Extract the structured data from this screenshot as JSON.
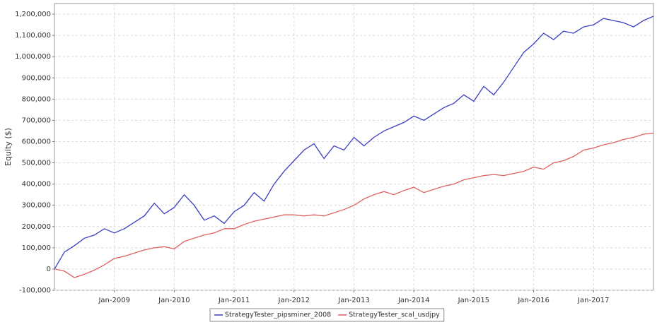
{
  "chart_data": {
    "type": "line",
    "y_label": "Equity ($)",
    "x": [
      "2008-01",
      "2008-03",
      "2008-05",
      "2008-07",
      "2008-09",
      "2008-11",
      "2009-01",
      "2009-03",
      "2009-05",
      "2009-07",
      "2009-09",
      "2009-11",
      "2010-01",
      "2010-03",
      "2010-05",
      "2010-07",
      "2010-09",
      "2010-11",
      "2011-01",
      "2011-03",
      "2011-05",
      "2011-07",
      "2011-09",
      "2011-11",
      "2012-01",
      "2012-03",
      "2012-05",
      "2012-07",
      "2012-09",
      "2012-11",
      "2013-01",
      "2013-03",
      "2013-05",
      "2013-07",
      "2013-09",
      "2013-11",
      "2014-01",
      "2014-03",
      "2014-05",
      "2014-07",
      "2014-09",
      "2014-11",
      "2015-01",
      "2015-03",
      "2015-05",
      "2015-07",
      "2015-09",
      "2015-11",
      "2016-01",
      "2016-03",
      "2016-05",
      "2016-07",
      "2016-09",
      "2016-11",
      "2017-01",
      "2017-03",
      "2017-05",
      "2017-07",
      "2017-09",
      "2017-11",
      "2018-01"
    ],
    "series": [
      {
        "name": "StrategyTester_pipsminer_2008",
        "color": "#3a3fc0",
        "values": [
          0,
          80000,
          110000,
          145000,
          160000,
          190000,
          170000,
          190000,
          220000,
          250000,
          310000,
          260000,
          290000,
          350000,
          300000,
          230000,
          250000,
          215000,
          270000,
          300000,
          360000,
          320000,
          400000,
          460000,
          510000,
          560000,
          590000,
          520000,
          580000,
          560000,
          620000,
          580000,
          620000,
          650000,
          670000,
          690000,
          720000,
          700000,
          730000,
          760000,
          780000,
          820000,
          790000,
          860000,
          820000,
          880000,
          950000,
          1020000,
          1060000,
          1110000,
          1080000,
          1120000,
          1110000,
          1140000,
          1150000,
          1180000,
          1170000,
          1160000,
          1140000,
          1170000,
          1190000
        ]
      },
      {
        "name": "StrategyTester_scal_usdjpy",
        "color": "#e06060",
        "values": [
          0,
          -10000,
          -40000,
          -25000,
          -5000,
          20000,
          50000,
          60000,
          75000,
          90000,
          100000,
          105000,
          95000,
          130000,
          145000,
          160000,
          170000,
          190000,
          190000,
          210000,
          225000,
          235000,
          245000,
          255000,
          255000,
          250000,
          255000,
          250000,
          265000,
          280000,
          300000,
          330000,
          350000,
          365000,
          350000,
          370000,
          385000,
          360000,
          375000,
          390000,
          400000,
          420000,
          430000,
          440000,
          445000,
          440000,
          450000,
          460000,
          480000,
          470000,
          500000,
          510000,
          530000,
          560000,
          570000,
          585000,
          595000,
          610000,
          620000,
          635000,
          640000
        ]
      }
    ],
    "xlim": [
      "2008-01",
      "2018-01"
    ],
    "xticks": [
      {
        "value": "2009-01",
        "label": "Jan-2009"
      },
      {
        "value": "2010-01",
        "label": "Jan-2010"
      },
      {
        "value": "2011-01",
        "label": "Jan-2011"
      },
      {
        "value": "2012-01",
        "label": "Jan-2012"
      },
      {
        "value": "2013-01",
        "label": "Jan-2013"
      },
      {
        "value": "2014-01",
        "label": "Jan-2014"
      },
      {
        "value": "2015-01",
        "label": "Jan-2015"
      },
      {
        "value": "2016-01",
        "label": "Jan-2016"
      },
      {
        "value": "2017-01",
        "label": "Jan-2017"
      }
    ],
    "ylim": [
      -100000,
      1250000
    ],
    "yticks": [
      {
        "value": -100000,
        "label": "-100,000"
      },
      0,
      {
        "value": 100000,
        "label": "100,000"
      },
      {
        "value": 200000,
        "label": "200,000"
      },
      {
        "value": 300000,
        "label": "300,000"
      },
      {
        "value": 400000,
        "label": "400,000"
      },
      {
        "value": 500000,
        "label": "500,000"
      },
      {
        "value": 600000,
        "label": "600,000"
      },
      {
        "value": 700000,
        "label": "700,000"
      },
      {
        "value": 800000,
        "label": "800,000"
      },
      {
        "value": 900000,
        "label": "900,000"
      },
      {
        "value": 1000000,
        "label": "1,000,000"
      },
      {
        "value": 1100000,
        "label": "1,100,000"
      },
      {
        "value": 1200000,
        "label": "1,200,000"
      }
    ],
    "grid": true,
    "legend": "bottom"
  }
}
